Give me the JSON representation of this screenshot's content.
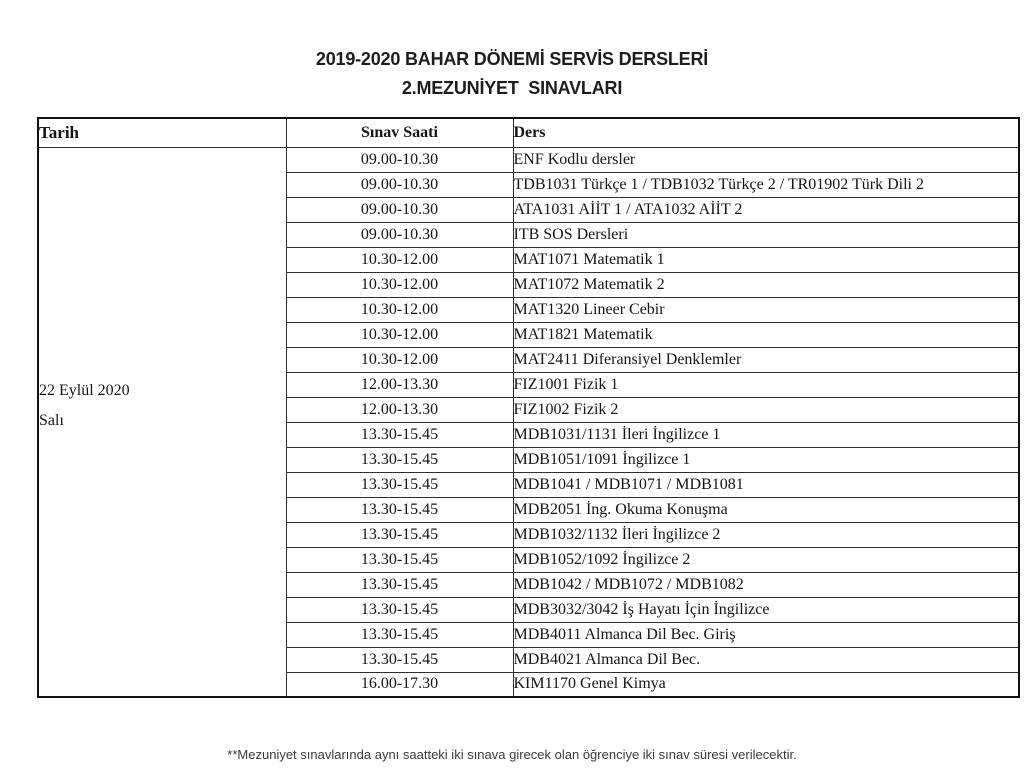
{
  "page": {
    "title_line1": "2019-2020 BAHAR DÖNEMİ SERVİS DERSLERİ",
    "title_line2": "2.MEZUNİYET  SINAVLARI",
    "footnote": "**Mezuniyet sınavlarında aynı saatteki iki sınava girecek olan öğrenciye iki sınav süresi verilecektir."
  },
  "table": {
    "headers": [
      "Tarih",
      "Sınav Saati",
      "Ders"
    ],
    "date": {
      "line1": "22 Eylül 2020",
      "line2": "Salı"
    },
    "rows": [
      {
        "time": "09.00-10.30",
        "course": "ENF Kodlu dersler"
      },
      {
        "time": "09.00-10.30",
        "course": "TDB1031 Türkçe 1 / TDB1032 Türkçe 2 / TR01902 Türk Dili 2"
      },
      {
        "time": "09.00-10.30",
        "course": "ATA1031 AİİT 1 / ATA1032 AİİT 2"
      },
      {
        "time": "09.00-10.30",
        "course": "ITB SOS Dersleri"
      },
      {
        "time": "10.30-12.00",
        "course": "MAT1071 Matematik 1"
      },
      {
        "time": "10.30-12.00",
        "course": "MAT1072 Matematik 2"
      },
      {
        "time": "10.30-12.00",
        "course": "MAT1320 Lineer Cebir"
      },
      {
        "time": "10.30-12.00",
        "course": "MAT1821 Matematik"
      },
      {
        "time": "10.30-12.00",
        "course": "MAT2411 Diferansiyel Denklemler"
      },
      {
        "time": "12.00-13.30",
        "course": "FIZ1001 Fizik 1"
      },
      {
        "time": "12.00-13.30",
        "course": "FIZ1002 Fizik 2"
      },
      {
        "time": "13.30-15.45",
        "course": "MDB1031/1131 İleri İngilizce 1"
      },
      {
        "time": "13.30-15.45",
        "course": "MDB1051/1091 İngilizce 1"
      },
      {
        "time": "13.30-15.45",
        "course": "MDB1041 / MDB1071 / MDB1081"
      },
      {
        "time": "13.30-15.45",
        "course": "MDB2051 İng. Okuma Konuşma"
      },
      {
        "time": "13.30-15.45",
        "course": "MDB1032/1132 İleri İngilizce 2"
      },
      {
        "time": "13.30-15.45",
        "course": "MDB1052/1092 İngilizce 2"
      },
      {
        "time": "13.30-15.45",
        "course": "MDB1042 / MDB1072 / MDB1082"
      },
      {
        "time": "13.30-15.45",
        "course": "MDB3032/3042 İş Hayatı İçin İngilizce"
      },
      {
        "time": "13.30-15.45",
        "course": "MDB4011 Almanca Dil Bec. Giriş"
      },
      {
        "time": "13.30-15.45",
        "course": "MDB4021 Almanca Dil Bec."
      },
      {
        "time": "16.00-17.30",
        "course": "KIM1170 Genel Kimya"
      }
    ]
  },
  "colors": {
    "text": "#141414",
    "border_outer": "#111111",
    "border_inner": "#2e2e2e",
    "background": "#ffffff"
  }
}
